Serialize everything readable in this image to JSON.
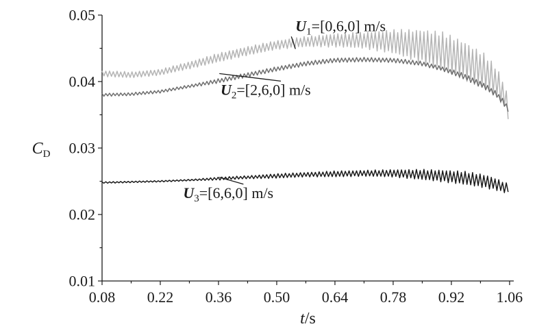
{
  "chart_data": {
    "type": "line",
    "title": "",
    "xlabel": {
      "var": "t",
      "unit": "/s"
    },
    "ylabel": {
      "main": "C",
      "sub": "D"
    },
    "xlim": [
      0.08,
      1.07
    ],
    "ylim": [
      0.01,
      0.05
    ],
    "xticks": [
      0.08,
      0.22,
      0.36,
      0.5,
      0.64,
      0.78,
      0.92,
      1.06
    ],
    "xtick_labels": [
      "0.08",
      "0.22",
      "0.36",
      "0.50",
      "0.64",
      "0.78",
      "0.92",
      "1.06"
    ],
    "yticks": [
      0.01,
      0.02,
      0.03,
      0.04,
      0.05
    ],
    "ytick_labels": [
      "0.01",
      "0.02",
      "0.03",
      "0.04",
      "0.05"
    ],
    "grid": false,
    "legend": "none",
    "series": [
      {
        "color": "#b4b4b4",
        "label": {
          "var": "U",
          "sub": "1",
          "vec": "=[0,6,0]",
          "unit": " m/s"
        },
        "label_anchor": [
          0.545,
          0.0476
        ],
        "pointer": [
          0.545,
          0.0449
        ],
        "x": [
          0.08,
          0.15,
          0.22,
          0.3,
          0.36,
          0.43,
          0.5,
          0.57,
          0.64,
          0.71,
          0.78,
          0.85,
          0.9,
          0.95,
          1.0,
          1.03,
          1.05,
          1.06
        ],
        "y": [
          0.0412,
          0.041,
          0.0414,
          0.0426,
          0.0436,
          0.0446,
          0.0455,
          0.046,
          0.0462,
          0.0462,
          0.046,
          0.0453,
          0.0445,
          0.0432,
          0.0415,
          0.0398,
          0.0375,
          0.035
        ],
        "osc_amp": [
          0.0004,
          0.0004,
          0.0004,
          0.0005,
          0.0006,
          0.0006,
          0.0006,
          0.0007,
          0.0009,
          0.0011,
          0.0016,
          0.0023,
          0.0026,
          0.0026,
          0.0024,
          0.002,
          0.0016,
          0.0012
        ]
      },
      {
        "color": "#6e6e6e",
        "label": {
          "var": "U",
          "sub": "2",
          "vec": "=[2,6,0]",
          "unit": " m/s"
        },
        "label_anchor": [
          0.365,
          0.038
        ],
        "pointer": [
          0.362,
          0.0412
        ],
        "x": [
          0.08,
          0.15,
          0.22,
          0.3,
          0.36,
          0.43,
          0.5,
          0.57,
          0.64,
          0.71,
          0.78,
          0.85,
          0.9,
          0.95,
          1.0,
          1.03,
          1.05,
          1.06
        ],
        "y": [
          0.038,
          0.0381,
          0.0385,
          0.0394,
          0.0401,
          0.041,
          0.0419,
          0.0427,
          0.0432,
          0.0433,
          0.0432,
          0.0427,
          0.0419,
          0.0408,
          0.0393,
          0.038,
          0.0365,
          0.0355
        ],
        "osc_amp": [
          0.0002,
          0.0002,
          0.0002,
          0.0002,
          0.0003,
          0.0003,
          0.0003,
          0.0003,
          0.0003,
          0.0003,
          0.0003,
          0.0003,
          0.0003,
          0.0004,
          0.0004,
          0.0004,
          0.0004,
          0.0004
        ]
      },
      {
        "color": "#1a1a1a",
        "label": {
          "var": "U",
          "sub": "3",
          "vec": "=[6,6,0]",
          "unit": " m/s"
        },
        "label_anchor": [
          0.275,
          0.0225
        ],
        "pointer": [
          0.362,
          0.0256
        ],
        "x": [
          0.08,
          0.15,
          0.22,
          0.3,
          0.36,
          0.43,
          0.5,
          0.57,
          0.64,
          0.71,
          0.78,
          0.85,
          0.9,
          0.95,
          1.0,
          1.03,
          1.05,
          1.06
        ],
        "y": [
          0.0248,
          0.0249,
          0.025,
          0.0252,
          0.0254,
          0.0256,
          0.0258,
          0.026,
          0.0261,
          0.0262,
          0.0262,
          0.026,
          0.0258,
          0.0255,
          0.025,
          0.0245,
          0.024,
          0.024
        ],
        "osc_amp": [
          0.0001,
          0.0001,
          0.0001,
          0.0001,
          0.0002,
          0.0002,
          0.0003,
          0.0003,
          0.0004,
          0.0004,
          0.0005,
          0.0007,
          0.0008,
          0.0009,
          0.0009,
          0.0008,
          0.0007,
          0.0006
        ]
      }
    ]
  }
}
